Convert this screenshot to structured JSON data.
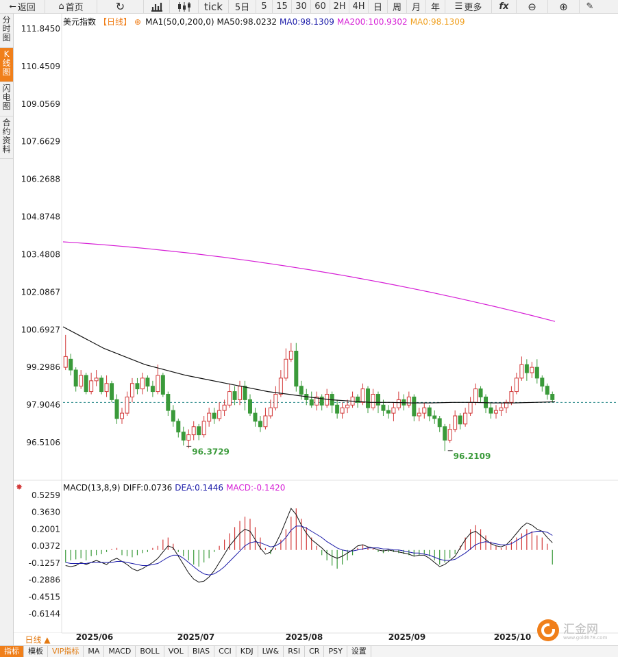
{
  "toolbar": {
    "back": "返回",
    "home": "首页",
    "tick": "tick",
    "fiveday": "5日",
    "periods": [
      "5",
      "15",
      "30",
      "60",
      "2H",
      "4H",
      "日",
      "周",
      "月",
      "年"
    ],
    "more": "更多"
  },
  "sidetabs": [
    "分时图",
    "K线图",
    "闪电图",
    "合约资料"
  ],
  "legend": {
    "name": "美元指数",
    "period": "【日线】",
    "ma_group": "MA1(50,0,200,0)",
    "ma50": "MA50:98.0232",
    "ma0": "MA0:98.1309",
    "ma200": "MA200:100.9302",
    "ma0b": "MA0:98.1309"
  },
  "macd_legend": {
    "name": "MACD(13,8,9)",
    "diff": "DIFF:0.0736",
    "dea": "DEA:0.1446",
    "macd": "MACD:-0.1420"
  },
  "price_axis": [
    "111.8450",
    "110.4509",
    "109.0569",
    "107.6629",
    "106.2688",
    "104.8748",
    "103.4808",
    "102.0867",
    "100.6927",
    "99.2986",
    "97.9046",
    "96.5106"
  ],
  "macd_axis": [
    "0.5259",
    "0.3630",
    "0.2001",
    "0.0372",
    "-0.1257",
    "-0.2886",
    "-0.4515",
    "-0.6144"
  ],
  "date_axis": [
    "2025/06",
    "2025/07",
    "2025/08",
    "2025/09",
    "2025/10"
  ],
  "low_markers": [
    "96.3729",
    "96.2109"
  ],
  "day_label": "日线 ▲",
  "bottom_tabs": [
    "指标",
    "模板",
    "VIP指标",
    "MA",
    "MACD",
    "BOLL",
    "VOL",
    "BIAS",
    "CCI",
    "KDJ",
    "LW&",
    "RSI",
    "CR",
    "PSY",
    "设置"
  ],
  "watermark": {
    "name": "汇金网",
    "url": "www.gold678.com"
  },
  "colors": {
    "up": "#d23838",
    "down": "#3a9a3a",
    "ma200": "#d61fd6",
    "ma50": "#111111",
    "dea": "#1a1aa8",
    "accent": "#f07f1a"
  },
  "chart_data": {
    "type": "candlestick",
    "title": "美元指数",
    "period": "日线",
    "ylim": [
      96.0,
      112.0
    ],
    "low_labels": [
      96.3729,
      96.2109
    ],
    "candles": [
      [
        99.3,
        99.7,
        100.5,
        99.2
      ],
      [
        99.6,
        99.2,
        99.8,
        99.0
      ],
      [
        99.2,
        98.6,
        99.3,
        98.4
      ],
      [
        98.6,
        99.0,
        99.2,
        98.5
      ],
      [
        99.0,
        98.4,
        99.1,
        98.3
      ],
      [
        98.4,
        98.8,
        99.1,
        98.3
      ],
      [
        98.8,
        98.9,
        99.2,
        98.6
      ],
      [
        98.9,
        98.4,
        99.0,
        98.3
      ],
      [
        98.4,
        98.7,
        99.0,
        98.2
      ],
      [
        98.7,
        98.1,
        98.8,
        98.0
      ],
      [
        98.1,
        97.4,
        98.3,
        97.2
      ],
      [
        97.4,
        97.6,
        97.8,
        97.2
      ],
      [
        97.6,
        98.2,
        98.4,
        97.5
      ],
      [
        98.2,
        98.7,
        98.9,
        98.0
      ],
      [
        98.7,
        98.5,
        98.9,
        98.3
      ],
      [
        98.5,
        98.9,
        99.1,
        98.3
      ],
      [
        98.9,
        98.6,
        99.0,
        98.4
      ],
      [
        98.6,
        98.4,
        98.8,
        98.2
      ],
      [
        98.4,
        99.0,
        99.4,
        98.3
      ],
      [
        99.0,
        98.3,
        99.1,
        98.2
      ],
      [
        98.3,
        97.7,
        98.4,
        97.5
      ],
      [
        97.7,
        97.3,
        97.9,
        97.1
      ],
      [
        97.3,
        96.9,
        97.4,
        96.7
      ],
      [
        96.9,
        96.6,
        97.1,
        96.4
      ],
      [
        96.6,
        96.8,
        97.0,
        96.3
      ],
      [
        96.8,
        97.1,
        97.3,
        96.6
      ],
      [
        97.1,
        96.8,
        97.2,
        96.6
      ],
      [
        96.8,
        97.3,
        97.5,
        96.7
      ],
      [
        97.3,
        97.6,
        97.8,
        97.1
      ],
      [
        97.6,
        97.4,
        97.8,
        97.2
      ],
      [
        97.4,
        97.7,
        98.0,
        97.3
      ],
      [
        97.7,
        97.9,
        98.1,
        97.5
      ],
      [
        97.9,
        98.4,
        98.7,
        97.8
      ],
      [
        98.4,
        98.1,
        98.6,
        97.9
      ],
      [
        98.1,
        98.6,
        98.8,
        97.9
      ],
      [
        98.6,
        98.1,
        98.8,
        97.7
      ],
      [
        98.1,
        97.6,
        98.3,
        97.5
      ],
      [
        97.6,
        97.3,
        97.8,
        97.1
      ],
      [
        97.3,
        97.1,
        97.5,
        96.9
      ],
      [
        97.1,
        97.5,
        97.8,
        97.0
      ],
      [
        97.5,
        97.8,
        98.1,
        97.4
      ],
      [
        97.8,
        98.3,
        98.6,
        97.7
      ],
      [
        98.3,
        98.9,
        99.2,
        98.2
      ],
      [
        98.9,
        99.6,
        100.0,
        98.8
      ],
      [
        99.6,
        99.9,
        100.2,
        99.5
      ],
      [
        99.9,
        98.6,
        100.2,
        98.4
      ],
      [
        98.6,
        98.3,
        98.8,
        98.1
      ],
      [
        98.3,
        98.1,
        98.5,
        97.9
      ],
      [
        98.1,
        97.9,
        98.4,
        97.8
      ],
      [
        97.9,
        98.2,
        98.4,
        97.7
      ],
      [
        98.2,
        97.9,
        98.3,
        97.7
      ],
      [
        97.9,
        98.3,
        98.5,
        97.8
      ],
      [
        98.3,
        97.9,
        98.4,
        97.6
      ],
      [
        97.9,
        97.6,
        98.1,
        97.4
      ],
      [
        97.6,
        97.8,
        98.0,
        97.4
      ],
      [
        97.8,
        97.9,
        98.1,
        97.6
      ],
      [
        97.9,
        98.2,
        98.4,
        97.8
      ],
      [
        98.2,
        98.0,
        98.3,
        97.8
      ],
      [
        98.0,
        98.5,
        98.7,
        97.9
      ],
      [
        98.5,
        97.8,
        98.6,
        97.6
      ],
      [
        97.8,
        98.3,
        98.5,
        97.7
      ],
      [
        98.3,
        97.9,
        98.4,
        97.6
      ],
      [
        97.9,
        97.7,
        98.1,
        97.5
      ],
      [
        97.7,
        97.6,
        97.9,
        97.4
      ],
      [
        97.6,
        97.8,
        98.0,
        97.3
      ],
      [
        97.8,
        98.1,
        98.4,
        97.7
      ],
      [
        98.1,
        97.9,
        98.3,
        97.7
      ],
      [
        97.9,
        98.2,
        98.4,
        97.8
      ],
      [
        98.2,
        97.5,
        98.3,
        97.3
      ],
      [
        97.5,
        97.6,
        97.8,
        97.3
      ],
      [
        97.6,
        97.8,
        98.0,
        97.4
      ],
      [
        97.8,
        97.5,
        97.9,
        97.3
      ],
      [
        97.5,
        97.4,
        97.7,
        97.2
      ],
      [
        97.4,
        97.1,
        97.5,
        96.9
      ],
      [
        97.1,
        96.6,
        97.2,
        96.2
      ],
      [
        96.6,
        97.0,
        97.2,
        96.5
      ],
      [
        97.0,
        97.5,
        97.7,
        96.9
      ],
      [
        97.5,
        97.2,
        97.6,
        97.0
      ],
      [
        97.2,
        97.6,
        97.8,
        97.1
      ],
      [
        97.6,
        98.0,
        98.2,
        97.5
      ],
      [
        98.0,
        98.5,
        98.7,
        97.9
      ],
      [
        98.5,
        98.2,
        98.6,
        98.0
      ],
      [
        98.2,
        97.8,
        98.3,
        97.6
      ],
      [
        97.8,
        97.6,
        98.0,
        97.4
      ],
      [
        97.6,
        97.7,
        97.9,
        97.4
      ],
      [
        97.7,
        97.8,
        98.0,
        97.5
      ],
      [
        97.8,
        98.0,
        98.1,
        97.6
      ],
      [
        98.0,
        98.4,
        98.6,
        97.9
      ],
      [
        98.4,
        98.9,
        99.1,
        98.3
      ],
      [
        98.9,
        99.4,
        99.7,
        98.8
      ],
      [
        99.4,
        99.1,
        99.6,
        98.8
      ],
      [
        99.1,
        99.3,
        99.5,
        98.9
      ],
      [
        99.3,
        98.9,
        99.6,
        98.7
      ],
      [
        98.9,
        98.6,
        99.0,
        98.4
      ],
      [
        98.6,
        98.3,
        98.7,
        98.1
      ],
      [
        98.3,
        98.1,
        98.4,
        98.0
      ]
    ],
    "ma200": {
      "start": 103.95,
      "end": 101.0
    },
    "ma50_points": [
      100.8,
      100.4,
      100.0,
      99.7,
      99.4,
      99.2,
      99.0,
      98.85,
      98.7,
      98.55,
      98.4,
      98.3,
      98.2,
      98.1,
      98.05,
      98.0,
      98.0,
      97.98,
      97.98,
      98.0,
      98.0,
      97.98,
      97.98,
      98.0,
      98.02
    ],
    "macd": {
      "diff_ylim": [
        -0.7,
        0.6
      ],
      "hist": [
        -0.12,
        -0.1,
        -0.09,
        -0.08,
        -0.1,
        -0.06,
        -0.05,
        -0.04,
        -0.02,
        0.01,
        0.02,
        -0.05,
        -0.06,
        -0.07,
        -0.05,
        -0.03,
        -0.02,
        0.02,
        0.04,
        0.1,
        0.12,
        0.06,
        -0.02,
        -0.06,
        -0.1,
        -0.14,
        -0.16,
        -0.12,
        -0.08,
        -0.02,
        0.04,
        0.1,
        0.16,
        0.22,
        0.28,
        0.32,
        0.3,
        0.22,
        0.12,
        0.02,
        -0.04,
        0.02,
        0.1,
        0.2,
        0.32,
        0.4,
        0.3,
        0.22,
        0.12,
        0.04,
        -0.05,
        -0.1,
        -0.15,
        -0.18,
        -0.14,
        -0.1,
        -0.05,
        0.02,
        0.05,
        0.03,
        0.02,
        -0.02,
        -0.03,
        -0.02,
        -0.02,
        -0.03,
        -0.04,
        -0.05,
        -0.06,
        -0.05,
        -0.04,
        -0.06,
        -0.1,
        -0.14,
        -0.12,
        -0.08,
        -0.04,
        0.04,
        0.12,
        0.2,
        0.24,
        0.2,
        0.14,
        0.08,
        0.04,
        0.02,
        0.04,
        0.08,
        0.12,
        0.16,
        0.2,
        0.18,
        0.14,
        0.12,
        0.06,
        -0.14
      ],
      "diff": [
        -0.15,
        -0.16,
        -0.15,
        -0.12,
        -0.14,
        -0.12,
        -0.1,
        -0.12,
        -0.14,
        -0.1,
        -0.08,
        -0.11,
        -0.14,
        -0.18,
        -0.2,
        -0.18,
        -0.15,
        -0.12,
        -0.08,
        -0.02,
        0.04,
        0.02,
        -0.06,
        -0.14,
        -0.22,
        -0.28,
        -0.31,
        -0.3,
        -0.26,
        -0.2,
        -0.12,
        -0.04,
        0.04,
        0.1,
        0.16,
        0.2,
        0.18,
        0.1,
        0.02,
        -0.04,
        -0.02,
        0.06,
        0.16,
        0.28,
        0.4,
        0.34,
        0.24,
        0.16,
        0.1,
        0.06,
        0.02,
        -0.03,
        -0.06,
        -0.08,
        -0.06,
        -0.03,
        0.0,
        0.04,
        0.05,
        0.03,
        0.02,
        0.0,
        -0.01,
        0.0,
        -0.01,
        -0.02,
        -0.03,
        -0.04,
        -0.06,
        -0.05,
        -0.05,
        -0.08,
        -0.12,
        -0.16,
        -0.14,
        -0.1,
        -0.06,
        0.02,
        0.1,
        0.16,
        0.18,
        0.14,
        0.1,
        0.06,
        0.04,
        0.03,
        0.05,
        0.1,
        0.16,
        0.22,
        0.26,
        0.24,
        0.2,
        0.18,
        0.12,
        0.07
      ],
      "dea": [
        -0.12,
        -0.13,
        -0.13,
        -0.13,
        -0.13,
        -0.12,
        -0.12,
        -0.12,
        -0.12,
        -0.12,
        -0.11,
        -0.11,
        -0.12,
        -0.13,
        -0.14,
        -0.15,
        -0.15,
        -0.14,
        -0.13,
        -0.1,
        -0.07,
        -0.05,
        -0.05,
        -0.08,
        -0.12,
        -0.16,
        -0.2,
        -0.23,
        -0.24,
        -0.23,
        -0.2,
        -0.16,
        -0.11,
        -0.06,
        -0.01,
        0.04,
        0.07,
        0.08,
        0.07,
        0.05,
        0.03,
        0.04,
        0.07,
        0.12,
        0.19,
        0.23,
        0.23,
        0.21,
        0.18,
        0.15,
        0.12,
        0.08,
        0.05,
        0.02,
        0.0,
        -0.01,
        -0.01,
        0.0,
        0.01,
        0.02,
        0.02,
        0.02,
        0.01,
        0.01,
        0.0,
        0.0,
        -0.01,
        -0.02,
        -0.03,
        -0.03,
        -0.04,
        -0.05,
        -0.07,
        -0.09,
        -0.1,
        -0.1,
        -0.09,
        -0.06,
        -0.03,
        0.01,
        0.05,
        0.07,
        0.08,
        0.07,
        0.06,
        0.05,
        0.05,
        0.06,
        0.09,
        0.12,
        0.15,
        0.17,
        0.18,
        0.18,
        0.17,
        0.14
      ]
    }
  }
}
